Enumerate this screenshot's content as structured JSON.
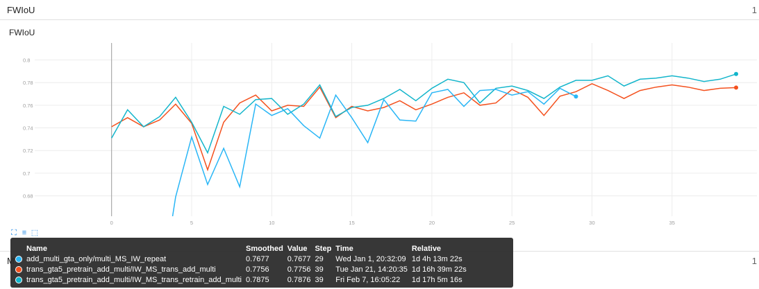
{
  "header": {
    "title": "FWIoU",
    "count": "1"
  },
  "bottom_header": {
    "title": "M",
    "count": "1"
  },
  "chart_data": {
    "type": "line",
    "title": "FWIoU",
    "xlim": [
      -4.8,
      40.3
    ],
    "ylim": [
      0.662,
      0.815
    ],
    "x_ticks": [
      0,
      5,
      10,
      15,
      20,
      25,
      30,
      35
    ],
    "y_ticks": [
      0.68,
      0.7,
      0.72,
      0.74,
      0.76,
      0.78,
      0.8
    ],
    "y_tick_labels": [
      "0.68",
      "0.7",
      "0.72",
      "0.74",
      "0.76",
      "0.78",
      "0.8"
    ],
    "grid": true,
    "series": [
      {
        "name": "trans_gta5_pretrain_add_multi/IW_MS_trans_add_multi",
        "color": "#f4511e",
        "x": [
          0,
          1,
          2,
          3,
          4,
          5,
          6,
          7,
          8,
          9,
          10,
          11,
          12,
          13,
          14,
          15,
          16,
          17,
          18,
          19,
          20,
          21,
          22,
          23,
          24,
          25,
          26,
          27,
          28,
          29,
          30,
          31,
          32,
          33,
          34,
          35,
          36,
          37,
          38,
          39
        ],
        "y": [
          0.741,
          0.749,
          0.741,
          0.747,
          0.761,
          0.744,
          0.703,
          0.745,
          0.762,
          0.769,
          0.755,
          0.76,
          0.759,
          0.776,
          0.749,
          0.759,
          0.755,
          0.758,
          0.764,
          0.756,
          0.761,
          0.767,
          0.771,
          0.76,
          0.762,
          0.774,
          0.767,
          0.751,
          0.768,
          0.772,
          0.779,
          0.773,
          0.766,
          0.773,
          0.776,
          0.778,
          0.776,
          0.773,
          0.775,
          0.7756
        ]
      },
      {
        "name": "trans_gta5_pretrain_add_multi/IW_MS_trans_retrain_add_multi",
        "color": "#12b5cb",
        "x": [
          0,
          1,
          2,
          3,
          4,
          5,
          6,
          7,
          8,
          9,
          10,
          11,
          12,
          13,
          14,
          15,
          16,
          17,
          18,
          19,
          20,
          21,
          22,
          23,
          24,
          25,
          26,
          27,
          28,
          29,
          30,
          31,
          32,
          33,
          34,
          35,
          36,
          37,
          38,
          39
        ],
        "y": [
          0.731,
          0.756,
          0.741,
          0.75,
          0.767,
          0.745,
          0.718,
          0.759,
          0.752,
          0.765,
          0.766,
          0.752,
          0.761,
          0.778,
          0.75,
          0.758,
          0.76,
          0.766,
          0.774,
          0.764,
          0.775,
          0.783,
          0.78,
          0.762,
          0.775,
          0.777,
          0.773,
          0.766,
          0.776,
          0.782,
          0.782,
          0.786,
          0.777,
          0.783,
          0.784,
          0.786,
          0.784,
          0.781,
          0.783,
          0.7876
        ]
      },
      {
        "name": "add_multi_gta_only/multi_MS_IW_repeat",
        "color": "#29b6f6",
        "x": [
          3.8,
          4,
          5,
          6,
          7,
          8,
          9,
          10,
          11,
          12,
          13,
          14,
          15,
          16,
          17,
          18,
          19,
          20,
          21,
          22,
          23,
          24,
          25,
          26,
          27,
          28,
          29
        ],
        "y": [
          0.661,
          0.679,
          0.732,
          0.69,
          0.722,
          0.688,
          0.761,
          0.751,
          0.757,
          0.742,
          0.731,
          0.769,
          0.749,
          0.727,
          0.765,
          0.747,
          0.746,
          0.771,
          0.774,
          0.759,
          0.773,
          0.774,
          0.769,
          0.772,
          0.761,
          0.775,
          0.7677
        ]
      }
    ]
  },
  "tooltip": {
    "headers": [
      "Name",
      "Smoothed",
      "Value",
      "Step",
      "Time",
      "Relative"
    ],
    "rows": [
      {
        "color": "#29b6f6",
        "name": "add_multi_gta_only/multi_MS_IW_repeat",
        "smoothed": "0.7677",
        "value": "0.7677",
        "step": "29",
        "time": "Wed Jan 1, 20:32:09",
        "relative": "1d 4h 13m 22s"
      },
      {
        "color": "#f4511e",
        "name": "trans_gta5_pretrain_add_multi/IW_MS_trans_add_multi",
        "smoothed": "0.7756",
        "value": "0.7756",
        "step": "39",
        "time": "Tue Jan 21, 14:20:35",
        "relative": "1d 16h 39m 22s"
      },
      {
        "color": "#12b5cb",
        "name": "trans_gta5_pretrain_add_multi/IW_MS_trans_retrain_add_multi",
        "smoothed": "0.7875",
        "value": "0.7876",
        "step": "39",
        "time": "Fri Feb 7, 16:05:22",
        "relative": "1d 17h 5m 16s"
      }
    ]
  }
}
